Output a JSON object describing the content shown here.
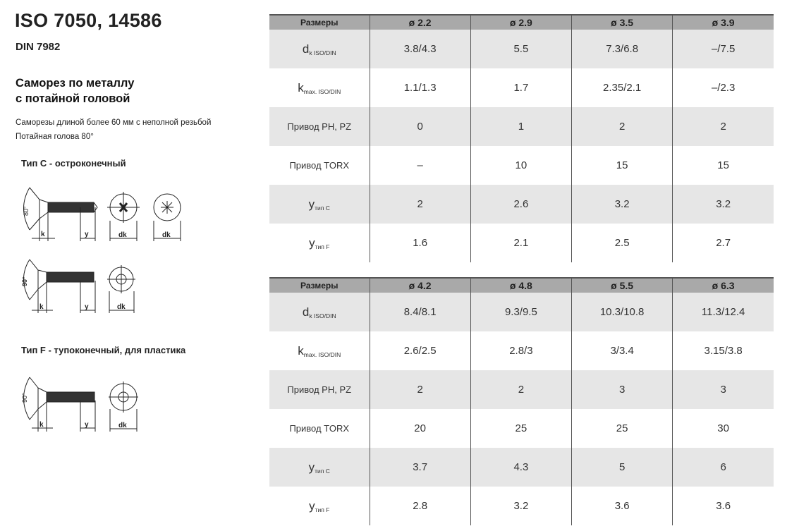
{
  "title": "ISO 7050, 14586",
  "subtitle": "DIN 7982",
  "heading_line1": "Саморез по металлу",
  "heading_line2": "с потайной головой",
  "note1": "Саморезы длиной более 60 мм с неполной резьбой",
  "note2": "Потайная голова 80°",
  "type_c": "Тип С - остроконечный",
  "type_f": "Тип F - тупоконечный, для пластика",
  "drawing_labels": {
    "k": "k",
    "y": "y",
    "dk": "dk",
    "angle80": "80°",
    "angle90": "90°"
  },
  "tables": [
    {
      "header": [
        "Размеры",
        "ø 2.2",
        "ø 2.9",
        "ø 3.5",
        "ø 3.9"
      ],
      "rows": [
        {
          "label": "d",
          "sub": "k ISO/DIN",
          "values": [
            "3.8/4.3",
            "5.5",
            "7.3/6.8",
            "–/7.5"
          ]
        },
        {
          "label": "k",
          "sub": "max. ISO/DIN",
          "values": [
            "1.1/1.3",
            "1.7",
            "2.35/2.1",
            "–/2.3"
          ]
        },
        {
          "label": "Привод PH, PZ",
          "sub": "",
          "values": [
            "0",
            "1",
            "2",
            "2"
          ]
        },
        {
          "label": "Привод TORX",
          "sub": "",
          "values": [
            "–",
            "10",
            "15",
            "15"
          ]
        },
        {
          "label": "y",
          "sub": "тип C",
          "values": [
            "2",
            "2.6",
            "3.2",
            "3.2"
          ]
        },
        {
          "label": "y",
          "sub": "тип F",
          "values": [
            "1.6",
            "2.1",
            "2.5",
            "2.7"
          ]
        }
      ]
    },
    {
      "header": [
        "Размеры",
        "ø 4.2",
        "ø 4.8",
        "ø 5.5",
        "ø 6.3"
      ],
      "rows": [
        {
          "label": "d",
          "sub": "k ISO/DIN",
          "values": [
            "8.4/8.1",
            "9.3/9.5",
            "10.3/10.8",
            "11.3/12.4"
          ]
        },
        {
          "label": "k",
          "sub": "max. ISO/DIN",
          "values": [
            "2.6/2.5",
            "2.8/3",
            "3/3.4",
            "3.15/3.8"
          ]
        },
        {
          "label": "Привод PH, PZ",
          "sub": "",
          "values": [
            "2",
            "2",
            "3",
            "3"
          ]
        },
        {
          "label": "Привод TORX",
          "sub": "",
          "values": [
            "20",
            "25",
            "25",
            "30"
          ]
        },
        {
          "label": "y",
          "sub": "тип C",
          "values": [
            "3.7",
            "4.3",
            "5",
            "6"
          ]
        },
        {
          "label": "y",
          "sub": "тип F",
          "values": [
            "2.8",
            "3.2",
            "3.6",
            "3.6"
          ]
        }
      ]
    }
  ]
}
